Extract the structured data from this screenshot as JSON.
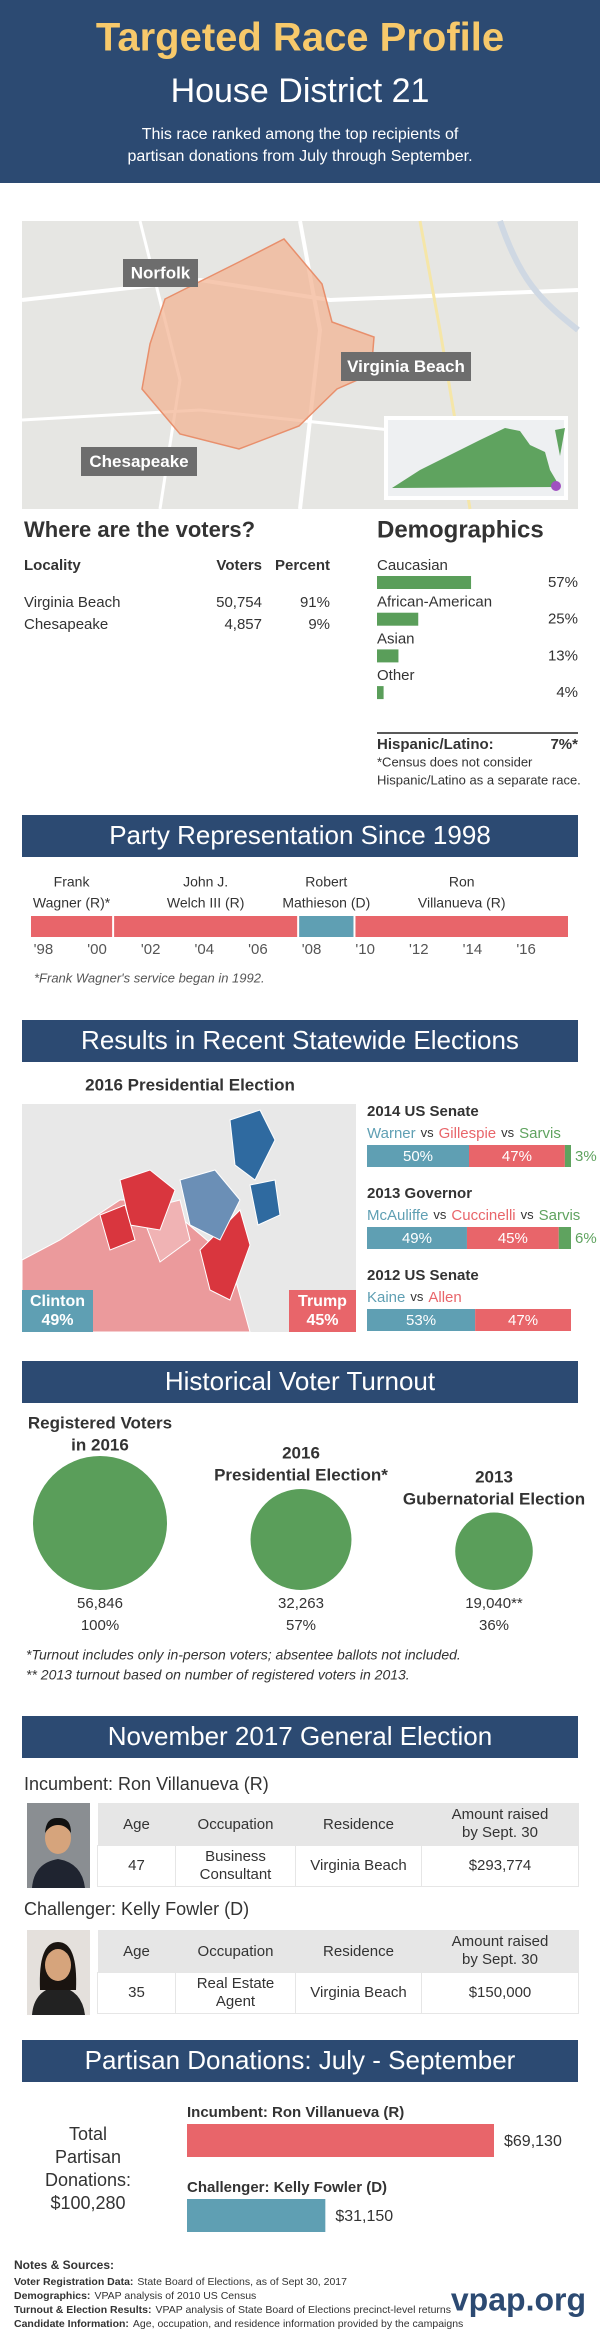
{
  "header": {
    "title": "Targeted Race Profile",
    "subtitle": "House District 21",
    "description": [
      "This race ranked among the top recipients of",
      "partisan donations from July through September."
    ]
  },
  "map": {
    "labels": [
      "Norfolk",
      "Virginia Beach",
      "Chesapeake"
    ]
  },
  "voters": {
    "title": "Where are the voters?",
    "columns": [
      "Locality",
      "Voters",
      "Percent"
    ],
    "rows": [
      [
        "Virginia Beach",
        "50,754",
        "91%"
      ],
      [
        "Chesapeake",
        "4,857",
        "9%"
      ]
    ]
  },
  "demographics": {
    "title": "Demographics",
    "categories": [
      "Caucasian",
      "African-American",
      "Asian",
      "Other"
    ],
    "values": [
      57,
      25,
      13,
      4
    ],
    "value_labels": [
      "57%",
      "25%",
      "13%",
      "4%"
    ],
    "color": "#5a9e5a",
    "hispanic_label": "Hispanic/Latino:",
    "hispanic_value": "7%*",
    "note": [
      "*Census does not consider",
      "Hispanic/Latino as a separate race."
    ]
  },
  "representation": {
    "title": "Party Representation Since 1998",
    "xlim": [
      1997.5,
      2017.6
    ],
    "xticks": [
      {
        "value": 1998,
        "label": "'98"
      },
      {
        "value": 2000,
        "label": "'00"
      },
      {
        "value": 2002,
        "label": "'02"
      },
      {
        "value": 2004,
        "label": "'04"
      },
      {
        "value": 2006,
        "label": "'06"
      },
      {
        "value": 2008,
        "label": "'08"
      },
      {
        "value": 2010,
        "label": "'10"
      },
      {
        "value": 2012,
        "label": "'12"
      },
      {
        "value": 2014,
        "label": "'14"
      },
      {
        "value": 2016,
        "label": "'16"
      }
    ],
    "segments": [
      {
        "name": [
          "Frank",
          "Wagner (R)*"
        ],
        "start": 1997.5,
        "end": 2000.6,
        "color": "#e8656a"
      },
      {
        "name": [
          "John J.",
          "Welch III (R)"
        ],
        "start": 2000.6,
        "end": 2007.5,
        "color": "#e8656a"
      },
      {
        "name": [
          "Robert",
          "Mathieson (D)"
        ],
        "start": 2007.5,
        "end": 2009.6,
        "color": "#5f9fb3"
      },
      {
        "name": [
          "Ron",
          "Villanueva (R)"
        ],
        "start": 2009.6,
        "end": 2017.6,
        "color": "#e8656a"
      }
    ],
    "note": "*Frank Wagner's service began in 1992."
  },
  "results": {
    "title": "Results in Recent Statewide Elections",
    "map_title": "2016 Presidential Election",
    "map_labels": [
      {
        "name": "Clinton",
        "value": "49%",
        "color": "#5f9fb3"
      },
      {
        "name": "Trump",
        "value": "45%",
        "color": "#e8656a"
      }
    ],
    "separator": "vs",
    "elections": [
      {
        "title": "2014 US Senate",
        "candidates": [
          "Warner",
          "Gillespie",
          "Sarvis"
        ],
        "colors": [
          "#5f9fb3",
          "#e8656a",
          "#5fa35f"
        ],
        "values": [
          50,
          47,
          3
        ],
        "value_labels": [
          "50%",
          "47%",
          "3%"
        ]
      },
      {
        "title": "2013 Governor",
        "candidates": [
          "McAuliffe",
          "Cuccinelli",
          "Sarvis"
        ],
        "colors": [
          "#5f9fb3",
          "#e8656a",
          "#5fa35f"
        ],
        "values": [
          49,
          45,
          6
        ],
        "value_labels": [
          "49%",
          "45%",
          "6%"
        ]
      },
      {
        "title": "2012 US Senate",
        "candidates": [
          "Kaine",
          "Allen"
        ],
        "colors": [
          "#5f9fb3",
          "#e8656a"
        ],
        "values": [
          53,
          47
        ],
        "value_labels": [
          "53%",
          "47%"
        ]
      }
    ]
  },
  "turnout": {
    "title": "Historical Voter Turnout",
    "categories": [
      [
        "Registered Voters",
        "in 2016"
      ],
      [
        "2016",
        "Presidential Election*"
      ],
      [
        "2013",
        "Gubernatorial Election"
      ]
    ],
    "values": [
      56846,
      32263,
      19040
    ],
    "value_labels": [
      "56,846",
      "32,263",
      "19,040**"
    ],
    "percents": [
      "100%",
      "57%",
      "36%"
    ],
    "color": "#5a9e5a",
    "notes": [
      "*Turnout includes only in-person voters; absentee ballots not included.",
      "** 2013 turnout based on number of registered voters in 2013."
    ]
  },
  "general": {
    "title": "November 2017 General Election",
    "columns": [
      "Age",
      "Occupation",
      "Residence",
      "Amount raised by Sept. 30"
    ],
    "candidates": [
      {
        "label": "Incumbent: Ron Villanueva (R)",
        "row": [
          "47",
          "Business Consultant",
          "Virginia Beach",
          "$293,774"
        ]
      },
      {
        "label": "Challenger: Kelly Fowler (D)",
        "row": [
          "35",
          "Real Estate Agent",
          "Virginia Beach",
          "$150,000"
        ]
      }
    ]
  },
  "donations": {
    "title": "Partisan Donations: July - September",
    "total_label": [
      "Total",
      "Partisan",
      "Donations:"
    ],
    "total": "$100,280",
    "categories": [
      "Incumbent: Ron Villanueva (R)",
      "Challenger: Kelly Fowler (D)"
    ],
    "values": [
      69130,
      31150
    ],
    "value_labels": [
      "$69,130",
      "$31,150"
    ],
    "colors": [
      "#e8656a",
      "#5f9fb3"
    ]
  },
  "notes": {
    "title": "Notes & Sources:",
    "items": [
      {
        "label": "Voter Registration Data:",
        "text": "State Board of Elections, as of Sept 30, 2017"
      },
      {
        "label": "Demographics:",
        "text": "VPAP analysis of 2010 US Census"
      },
      {
        "label": "Turnout & Election Results:",
        "text": "VPAP analysis of State Board of Elections precinct-level returns"
      },
      {
        "label": "Candidate Information:",
        "text": "Age, occupation, and residence information provided by the campaigns"
      }
    ],
    "logo": "vpap.org"
  }
}
